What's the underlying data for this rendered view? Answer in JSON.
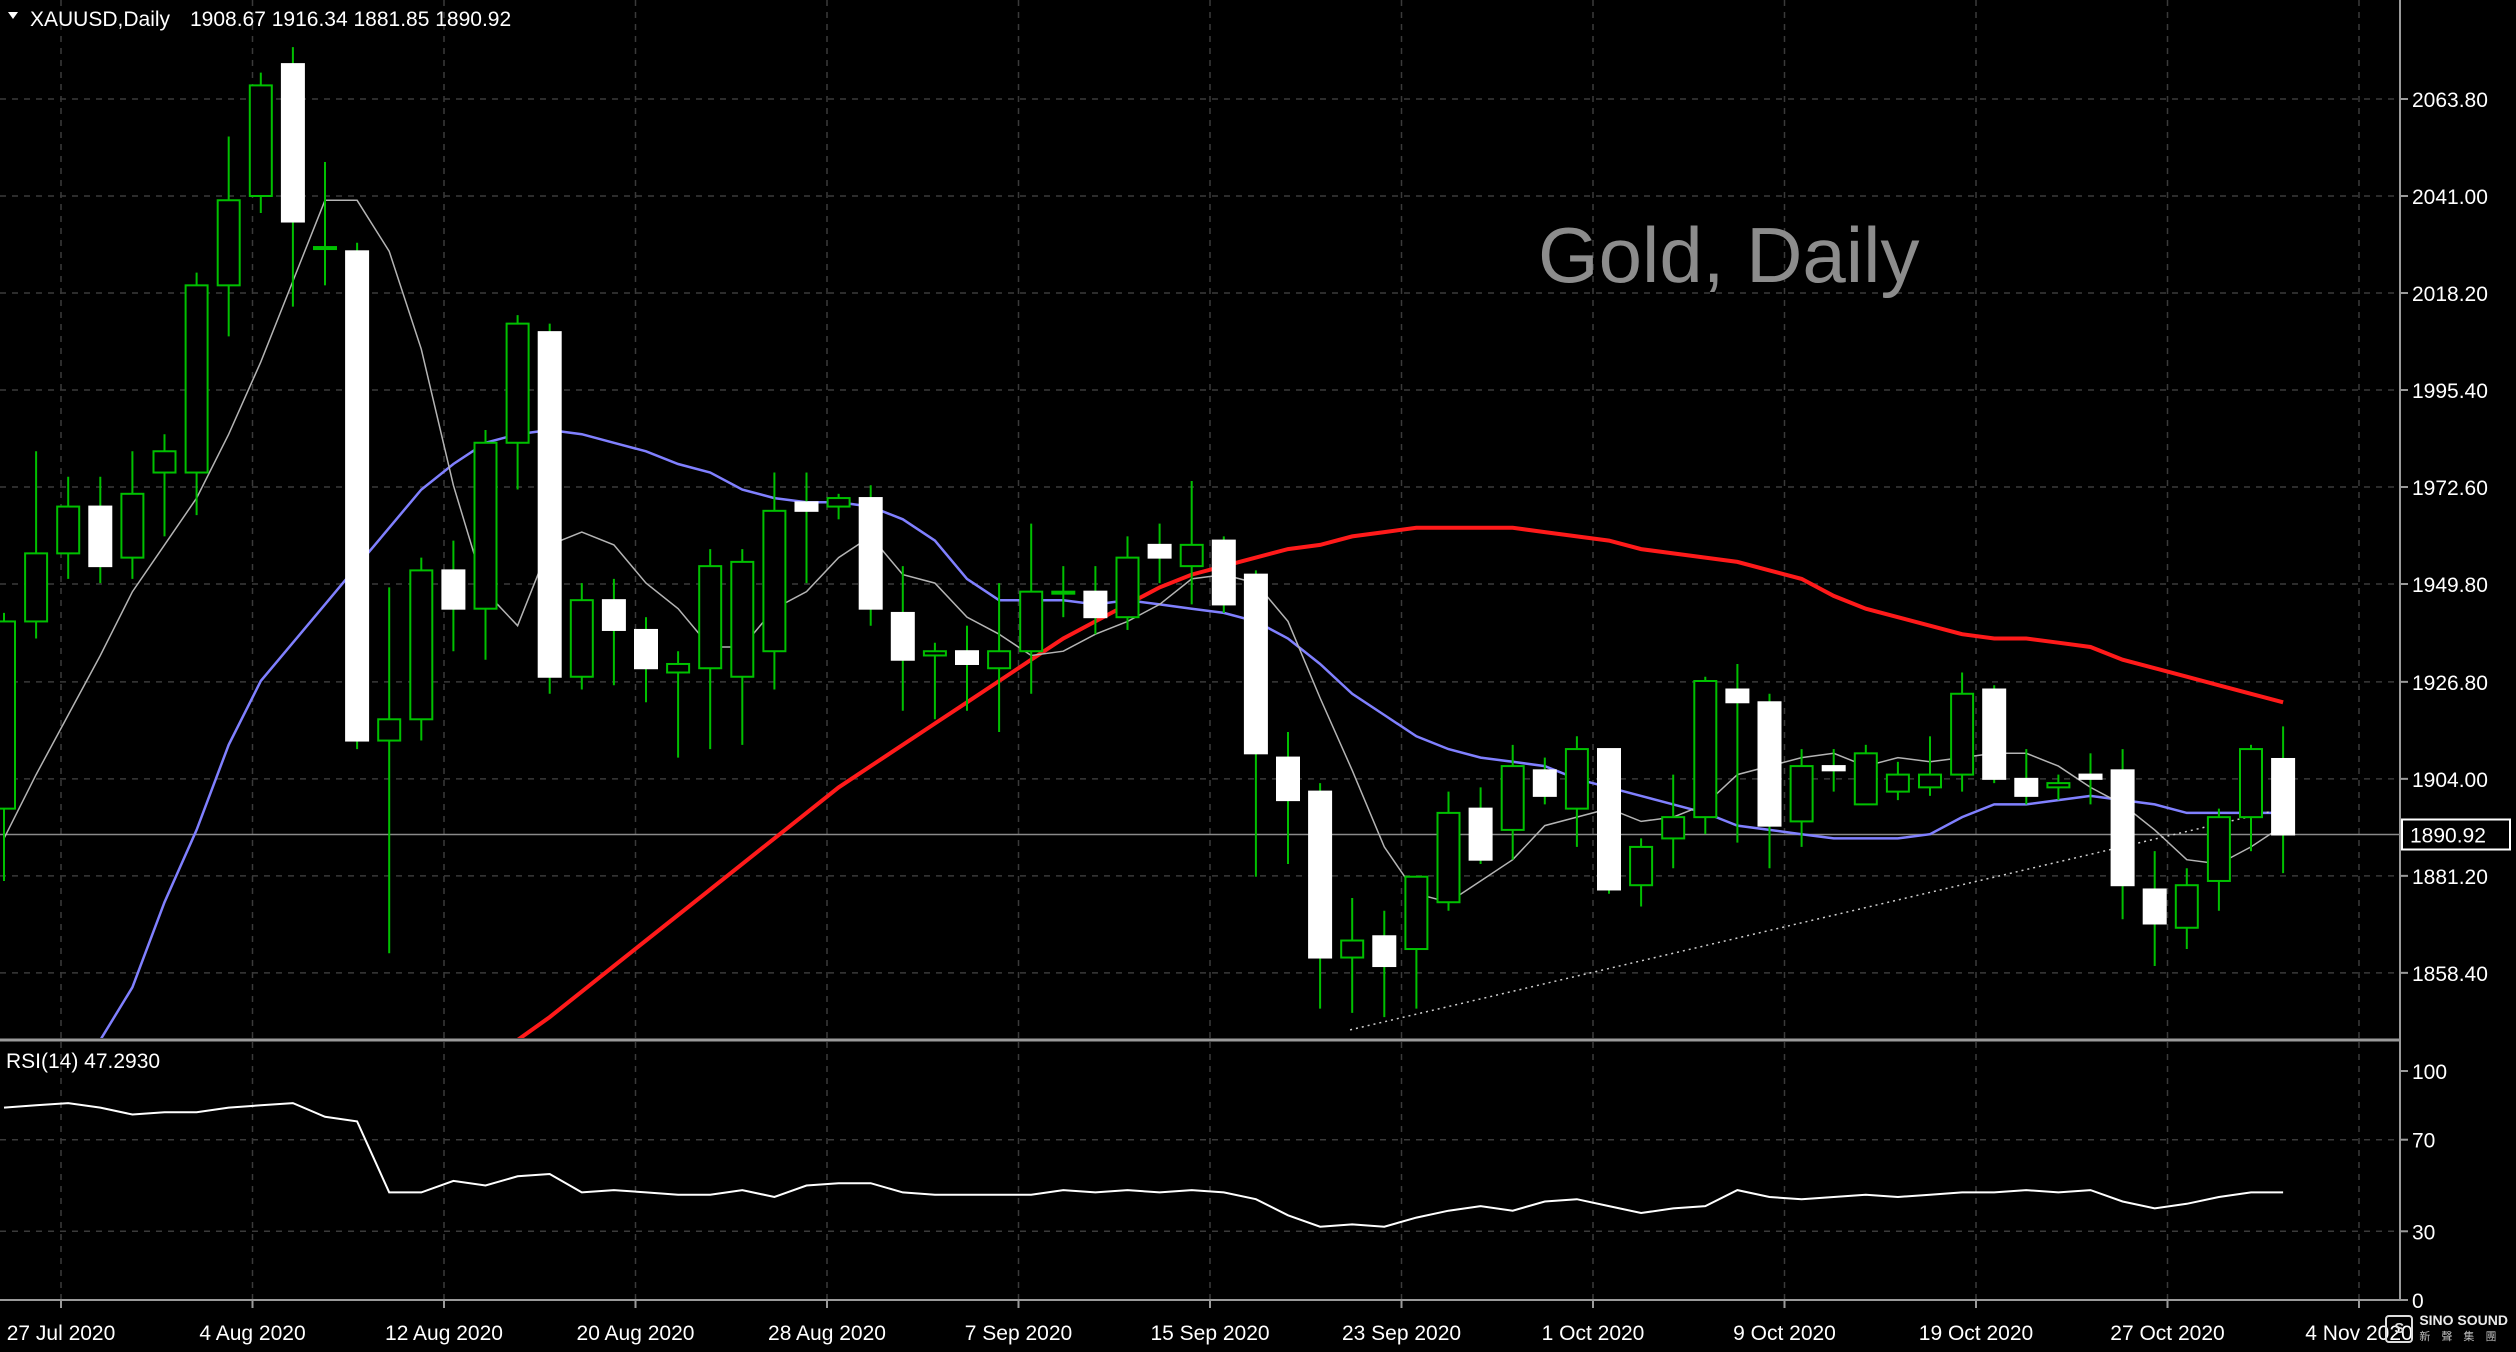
{
  "header": {
    "symbol": "XAUUSD,Daily",
    "ohlc": "1908.67 1916.34 1881.85 1890.92"
  },
  "watermark": "Gold, Daily",
  "logo": {
    "text": "SINO SOUND",
    "sub": "新 聲 集 團"
  },
  "colors": {
    "background": "#000000",
    "grid": "#3a3a3a",
    "text": "#ffffff",
    "bull_candle": "#000000",
    "bull_wick": "#00c000",
    "bear_candle": "#ffffff",
    "ma_fast": "#8080ff",
    "ma_slow": "#ff1a1a",
    "ma_short": "#b4b4b4",
    "rsi_line": "#ffffff",
    "watermark": "#8c8c8c"
  },
  "chart_data": [
    {
      "type": "candlestick",
      "symbol": "XAUUSD",
      "timeframe": "Daily",
      "title": "Gold, Daily",
      "current_price": "1890.92",
      "y_ticks": [
        "2063.80",
        "2041.00",
        "2018.20",
        "1995.40",
        "1972.60",
        "1949.80",
        "1926.80",
        "1904.00",
        "1881.20",
        "1858.40"
      ],
      "x_tick_labels": [
        "27 Jul 2020",
        "4 Aug 2020",
        "12 Aug 2020",
        "20 Aug 2020",
        "28 Aug 2020",
        "7 Sep 2020",
        "15 Sep 2020",
        "23 Sep 2020",
        "1 Oct 2020",
        "9 Oct 2020",
        "19 Oct 2020",
        "27 Oct 2020",
        "4 Nov 2020"
      ],
      "ylim": [
        1845.0,
        2083.0
      ],
      "grid": true,
      "candles": [
        {
          "o": 1897,
          "h": 1943,
          "l": 1880,
          "c": 1941
        },
        {
          "o": 1941,
          "h": 1981,
          "l": 1937,
          "c": 1957
        },
        {
          "o": 1957,
          "h": 1975,
          "l": 1951,
          "c": 1968
        },
        {
          "o": 1968,
          "h": 1975,
          "l": 1950,
          "c": 1954
        },
        {
          "o": 1956,
          "h": 1981,
          "l": 1951,
          "c": 1971
        },
        {
          "o": 1976,
          "h": 1985,
          "l": 1961,
          "c": 1981
        },
        {
          "o": 1976,
          "h": 2023,
          "l": 1966,
          "c": 2020
        },
        {
          "o": 2020,
          "h": 2055,
          "l": 2008,
          "c": 2040
        },
        {
          "o": 2041,
          "h": 2070,
          "l": 2037,
          "c": 2067
        },
        {
          "o": 2072,
          "h": 2076,
          "l": 2015,
          "c": 2035
        },
        {
          "o": 2029,
          "h": 2049,
          "l": 2020,
          "c": 2029
        },
        {
          "o": 2028,
          "h": 2030,
          "l": 1911,
          "c": 1913
        },
        {
          "o": 1913,
          "h": 1949,
          "l": 1863,
          "c": 1918
        },
        {
          "o": 1918,
          "h": 1956,
          "l": 1913,
          "c": 1953
        },
        {
          "o": 1953,
          "h": 1960,
          "l": 1934,
          "c": 1944
        },
        {
          "o": 1944,
          "h": 1986,
          "l": 1932,
          "c": 1983
        },
        {
          "o": 1983,
          "h": 2013,
          "l": 1972,
          "c": 2011
        },
        {
          "o": 2009,
          "h": 2011,
          "l": 1924,
          "c": 1928
        },
        {
          "o": 1928,
          "h": 1950,
          "l": 1925,
          "c": 1946
        },
        {
          "o": 1946,
          "h": 1951,
          "l": 1926,
          "c": 1939
        },
        {
          "o": 1939,
          "h": 1942,
          "l": 1922,
          "c": 1930
        },
        {
          "o": 1929,
          "h": 1934,
          "l": 1909,
          "c": 1931
        },
        {
          "o": 1930,
          "h": 1958,
          "l": 1911,
          "c": 1954
        },
        {
          "o": 1928,
          "h": 1958,
          "l": 1912,
          "c": 1955
        },
        {
          "o": 1934,
          "h": 1976,
          "l": 1925,
          "c": 1967
        },
        {
          "o": 1969,
          "h": 1976,
          "l": 1950,
          "c": 1967
        },
        {
          "o": 1968,
          "h": 1971,
          "l": 1965,
          "c": 1970
        },
        {
          "o": 1970,
          "h": 1973,
          "l": 1940,
          "c": 1944
        },
        {
          "o": 1943,
          "h": 1954,
          "l": 1920,
          "c": 1932
        },
        {
          "o": 1933,
          "h": 1936,
          "l": 1918,
          "c": 1934
        },
        {
          "o": 1934,
          "h": 1940,
          "l": 1920,
          "c": 1931
        },
        {
          "o": 1930,
          "h": 1950,
          "l": 1915,
          "c": 1934
        },
        {
          "o": 1934,
          "h": 1964,
          "l": 1924,
          "c": 1948
        },
        {
          "o": 1948,
          "h": 1954,
          "l": 1942,
          "c": 1948
        },
        {
          "o": 1948,
          "h": 1954,
          "l": 1938,
          "c": 1942
        },
        {
          "o": 1942,
          "h": 1961,
          "l": 1939,
          "c": 1956
        },
        {
          "o": 1959,
          "h": 1964,
          "l": 1950,
          "c": 1956
        },
        {
          "o": 1954,
          "h": 1974,
          "l": 1945,
          "c": 1959
        },
        {
          "o": 1960,
          "h": 1961,
          "l": 1943,
          "c": 1945
        },
        {
          "o": 1952,
          "h": 1953,
          "l": 1881,
          "c": 1910
        },
        {
          "o": 1909,
          "h": 1915,
          "l": 1884,
          "c": 1899
        },
        {
          "o": 1901,
          "h": 1903,
          "l": 1850,
          "c": 1862
        },
        {
          "o": 1862,
          "h": 1876,
          "l": 1849,
          "c": 1866
        },
        {
          "o": 1867,
          "h": 1873,
          "l": 1848,
          "c": 1860
        },
        {
          "o": 1864,
          "h": 1880,
          "l": 1850,
          "c": 1881
        },
        {
          "o": 1875,
          "h": 1901,
          "l": 1873,
          "c": 1896
        },
        {
          "o": 1897,
          "h": 1902,
          "l": 1884,
          "c": 1885
        },
        {
          "o": 1892,
          "h": 1912,
          "l": 1885,
          "c": 1907
        },
        {
          "o": 1906,
          "h": 1909,
          "l": 1898,
          "c": 1900
        },
        {
          "o": 1897,
          "h": 1914,
          "l": 1888,
          "c": 1911
        },
        {
          "o": 1911,
          "h": 1911,
          "l": 1877,
          "c": 1878
        },
        {
          "o": 1879,
          "h": 1890,
          "l": 1874,
          "c": 1888
        },
        {
          "o": 1890,
          "h": 1905,
          "l": 1883,
          "c": 1895
        },
        {
          "o": 1895,
          "h": 1928,
          "l": 1891,
          "c": 1927
        },
        {
          "o": 1925,
          "h": 1931,
          "l": 1889,
          "c": 1922
        },
        {
          "o": 1922,
          "h": 1924,
          "l": 1883,
          "c": 1893
        },
        {
          "o": 1894,
          "h": 1911,
          "l": 1888,
          "c": 1907
        },
        {
          "o": 1907,
          "h": 1911,
          "l": 1901,
          "c": 1906
        },
        {
          "o": 1898,
          "h": 1912,
          "l": 1898,
          "c": 1910
        },
        {
          "o": 1901,
          "h": 1908,
          "l": 1899,
          "c": 1905
        },
        {
          "o": 1902,
          "h": 1914,
          "l": 1900,
          "c": 1905
        },
        {
          "o": 1905,
          "h": 1929,
          "l": 1901,
          "c": 1924
        },
        {
          "o": 1925,
          "h": 1926,
          "l": 1903,
          "c": 1904
        },
        {
          "o": 1904,
          "h": 1911,
          "l": 1898,
          "c": 1900
        },
        {
          "o": 1902,
          "h": 1905,
          "l": 1899,
          "c": 1903
        },
        {
          "o": 1905,
          "h": 1910,
          "l": 1898,
          "c": 1904
        },
        {
          "o": 1906,
          "h": 1911,
          "l": 1871,
          "c": 1879
        },
        {
          "o": 1878,
          "h": 1887,
          "l": 1860,
          "c": 1870
        },
        {
          "o": 1869,
          "h": 1883,
          "l": 1864,
          "c": 1879
        },
        {
          "o": 1880,
          "h": 1897,
          "l": 1873,
          "c": 1895
        },
        {
          "o": 1895,
          "h": 1912,
          "l": 1887,
          "c": 1911
        },
        {
          "o": 1908.67,
          "h": 1916.34,
          "l": 1881.85,
          "c": 1890.92
        }
      ],
      "moving_averages": [
        {
          "period_label": "fast",
          "color": "#8080ff",
          "values": [
            null,
            null,
            null,
            1837,
            1855,
            1875,
            1892,
            1912,
            1927,
            1936,
            1945,
            1954,
            1963,
            1972,
            1978,
            1983,
            1985,
            1986,
            1985,
            1983,
            1981,
            1978,
            1976,
            1972,
            1970,
            1969,
            1969,
            1968,
            1965,
            1960,
            1951,
            1946,
            1946,
            1946,
            1945,
            1946,
            1945,
            1944,
            1943,
            1941,
            1937,
            1931,
            1924,
            1919,
            1914,
            1911,
            1909,
            1908,
            1907,
            1904,
            1902,
            1900,
            1898,
            1896,
            1893,
            1892,
            1891,
            1890,
            1890,
            1890,
            1891,
            1895,
            1898,
            1898,
            1899,
            1900,
            1899,
            1898,
            1896,
            1896,
            1896,
            1896
          ]
        },
        {
          "period_label": "slow",
          "color": "#ff1a1a",
          "values": [
            null,
            null,
            null,
            null,
            null,
            null,
            null,
            null,
            null,
            null,
            null,
            null,
            null,
            null,
            null,
            null,
            1841,
            1848,
            1854,
            1860,
            1866,
            1872,
            1878,
            1884,
            1890,
            1896,
            1902,
            1907,
            1912,
            1917,
            1922,
            1927,
            1932,
            1937,
            1941,
            1945,
            1949,
            1952,
            1954,
            1956,
            1958,
            1959,
            1961,
            1962,
            1963,
            1963,
            1963,
            1963,
            1962,
            1961,
            1960,
            1958,
            1957,
            1956,
            1955,
            1953,
            1951,
            1947,
            1944,
            1942,
            1940,
            1938,
            1937,
            1937,
            1936,
            1935,
            1932,
            1930,
            1928,
            1926,
            1924,
            1922
          ]
        },
        {
          "period_label": "short",
          "color": "#b4b4b4",
          "values": [
            1890,
            1905,
            1919,
            1933,
            1948,
            1959,
            1970,
            1985,
            2002,
            2021,
            2040,
            2040,
            2028,
            2005,
            1973,
            1948,
            1940,
            1959,
            1962,
            1959,
            1950,
            1944,
            1935,
            1935,
            1944,
            1948,
            1956,
            1961,
            1952,
            1950,
            1942,
            1938,
            1933,
            1934,
            1938,
            1941,
            1945,
            1951,
            1952,
            1950,
            1941,
            1923,
            1906,
            1888,
            1877,
            1875,
            1880,
            1885,
            1893,
            1895,
            1897,
            1894,
            1895,
            1898,
            1905,
            1907,
            1909,
            1910,
            1907,
            1909,
            1908,
            1909,
            1910,
            1910,
            1907,
            1902,
            1898,
            1892,
            1885,
            1884,
            1888,
            1893
          ]
        }
      ],
      "trendline": {
        "style": "dotted",
        "from": {
          "index": 41,
          "value": 1845
        },
        "to": {
          "index": 71,
          "value": 1897
        }
      },
      "current_price_line": 1890.92
    },
    {
      "type": "line",
      "indicator": "RSI(14)",
      "label": "RSI(14) 47.2930",
      "y_ticks": [
        "100",
        "70",
        "30",
        "0"
      ],
      "ylim": [
        0,
        100
      ],
      "values": [
        84,
        85,
        86,
        84,
        81,
        82,
        82,
        84,
        85,
        86,
        80,
        78,
        47,
        47,
        52,
        50,
        54,
        55,
        47,
        48,
        47,
        46,
        46,
        48,
        45,
        50,
        51,
        51,
        47,
        46,
        46,
        46,
        46,
        48,
        47,
        48,
        47,
        48,
        47,
        44,
        37,
        32,
        33,
        32,
        36,
        39,
        41,
        39,
        43,
        44,
        41,
        38,
        40,
        41,
        48,
        45,
        44,
        45,
        46,
        45,
        46,
        47,
        47,
        48,
        47,
        48,
        43,
        40,
        42,
        45,
        47,
        47
      ]
    }
  ]
}
